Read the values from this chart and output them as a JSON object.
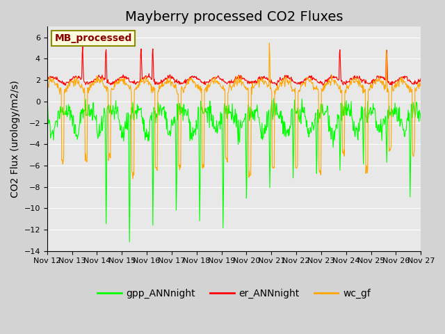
{
  "title": "Mayberry processed CO2 Fluxes",
  "ylabel": "CO2 Flux (urology/m2/s)",
  "ylim": [
    -14,
    7
  ],
  "yticks": [
    -14,
    -12,
    -10,
    -8,
    -6,
    -4,
    -2,
    0,
    2,
    4,
    6
  ],
  "xlim_days": [
    0,
    16
  ],
  "xtick_labels": [
    "Nov 12",
    "Nov 13",
    "Nov 14",
    "Nov 15",
    "Nov 16",
    "Nov 17",
    "Nov 18",
    "Nov 19",
    "Nov 20",
    "Nov 21",
    "Nov 22",
    "Nov 23",
    "Nov 24",
    "Nov 25",
    "Nov 26",
    "Nov 27"
  ],
  "legend_label": "MB_processed",
  "legend_text_color": "#8B0000",
  "legend_bg_color": "#FFFFE0",
  "legend_border_color": "#8B8B00",
  "line_colors": {
    "gpp": "#00FF00",
    "er": "#FF0000",
    "wc": "#FFA500"
  },
  "line_labels": [
    "gpp_ANNnight",
    "er_ANNnight",
    "wc_gf"
  ],
  "bg_color": "#E8E8E8",
  "plot_bg_color": "#E8E8E8",
  "title_fontsize": 14,
  "axis_fontsize": 10,
  "tick_fontsize": 8,
  "legend_fontsize": 10
}
